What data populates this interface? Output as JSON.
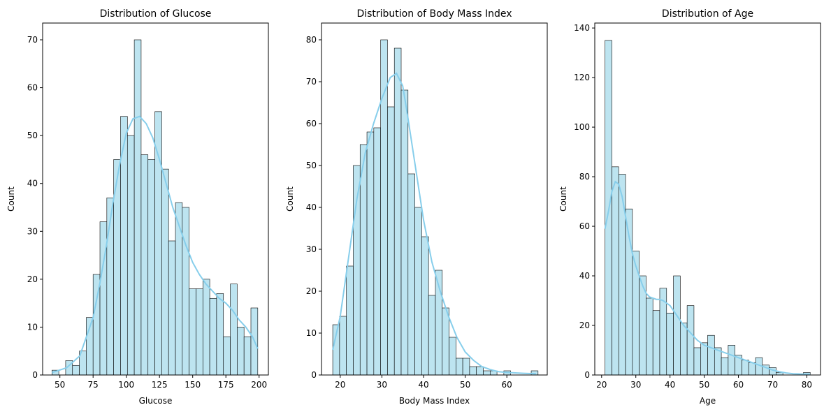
{
  "colors": {
    "bar_fill": "#bde4f0",
    "bar_edge": "#000000",
    "kde_line": "#87ceeb",
    "axes": "#000000"
  },
  "chart_data": [
    {
      "type": "bar",
      "title": "Distribution of Glucose",
      "xlabel": "Glucose",
      "ylabel": "Count",
      "xlim": [
        37,
        207
      ],
      "ylim": [
        0,
        73.5
      ],
      "xticks": [
        50,
        75,
        100,
        125,
        150,
        175,
        200
      ],
      "yticks": [
        0,
        10,
        20,
        30,
        40,
        50,
        60,
        70
      ],
      "bin_start": 44,
      "bin_width": 5.167,
      "counts": [
        1,
        0,
        3,
        2,
        5,
        12,
        21,
        32,
        37,
        45,
        54,
        50,
        70,
        46,
        45,
        55,
        43,
        28,
        36,
        35,
        18,
        18,
        20,
        16,
        17,
        8,
        19,
        10,
        8,
        14
      ],
      "kde": [
        [
          44,
          0.5
        ],
        [
          55,
          1.5
        ],
        [
          65,
          4
        ],
        [
          75,
          12
        ],
        [
          80,
          19
        ],
        [
          85,
          27
        ],
        [
          90,
          36
        ],
        [
          95,
          44
        ],
        [
          100,
          50.5
        ],
        [
          105,
          53.5
        ],
        [
          110,
          54
        ],
        [
          115,
          52.5
        ],
        [
          120,
          49.5
        ],
        [
          125,
          45
        ],
        [
          130,
          40
        ],
        [
          135,
          35
        ],
        [
          140,
          31
        ],
        [
          145,
          27
        ],
        [
          150,
          23.5
        ],
        [
          155,
          21
        ],
        [
          160,
          19
        ],
        [
          165,
          17.5
        ],
        [
          170,
          16
        ],
        [
          175,
          15
        ],
        [
          180,
          13.5
        ],
        [
          185,
          11.5
        ],
        [
          190,
          10
        ],
        [
          195,
          8
        ],
        [
          199,
          5.5
        ]
      ]
    },
    {
      "type": "bar",
      "title": "Distribution of Body Mass Index",
      "xlabel": "Body Mass Index",
      "ylabel": "Count",
      "xlim": [
        15.5,
        69.7
      ],
      "ylim": [
        0,
        84
      ],
      "xticks": [
        20,
        30,
        40,
        50,
        60
      ],
      "yticks": [
        0,
        10,
        20,
        30,
        40,
        50,
        60,
        70,
        80
      ],
      "bin_start": 18.2,
      "bin_width": 1.643,
      "counts": [
        12,
        14,
        26,
        50,
        55,
        58,
        59,
        80,
        64,
        78,
        68,
        48,
        40,
        33,
        19,
        25,
        16,
        9,
        4,
        4,
        2,
        2,
        1,
        1,
        0,
        1,
        0,
        0,
        0,
        1
      ],
      "kde": [
        [
          18.2,
          6
        ],
        [
          20,
          14
        ],
        [
          22,
          28
        ],
        [
          24,
          42
        ],
        [
          26,
          53
        ],
        [
          28,
          60
        ],
        [
          30,
          66
        ],
        [
          32,
          71
        ],
        [
          33.5,
          72
        ],
        [
          35,
          69
        ],
        [
          36,
          63
        ],
        [
          38,
          50
        ],
        [
          40,
          37
        ],
        [
          42,
          27
        ],
        [
          44,
          20
        ],
        [
          46,
          14
        ],
        [
          48,
          9
        ],
        [
          50,
          5.5
        ],
        [
          52,
          3.5
        ],
        [
          54,
          2
        ],
        [
          56,
          1.3
        ],
        [
          58,
          0.8
        ],
        [
          60,
          0.6
        ],
        [
          62,
          0.5
        ],
        [
          64,
          0.4
        ],
        [
          67,
          0.3
        ]
      ]
    },
    {
      "type": "bar",
      "title": "Distribution of Age",
      "xlabel": "Age",
      "ylabel": "Count",
      "xlim": [
        18,
        84
      ],
      "ylim": [
        0,
        142
      ],
      "xticks": [
        20,
        30,
        40,
        50,
        60,
        70,
        80
      ],
      "yticks": [
        0,
        20,
        40,
        60,
        80,
        100,
        120,
        140
      ],
      "bin_start": 21,
      "bin_width": 2,
      "counts": [
        135,
        84,
        81,
        67,
        50,
        40,
        31,
        26,
        35,
        25,
        40,
        21,
        28,
        11,
        13,
        16,
        11,
        7,
        12,
        8,
        6,
        5,
        7,
        4,
        3,
        1,
        0,
        0,
        0,
        1
      ],
      "kde": [
        [
          21,
          59
        ],
        [
          22,
          66
        ],
        [
          23,
          74
        ],
        [
          24,
          78
        ],
        [
          25,
          77
        ],
        [
          26,
          72
        ],
        [
          27,
          64
        ],
        [
          28,
          56
        ],
        [
          29,
          49
        ],
        [
          30,
          44
        ],
        [
          31,
          40
        ],
        [
          32,
          36
        ],
        [
          33,
          33
        ],
        [
          34,
          31.5
        ],
        [
          35,
          31
        ],
        [
          36,
          30.5
        ],
        [
          37,
          30.5
        ],
        [
          38,
          30
        ],
        [
          39,
          29
        ],
        [
          40,
          28
        ],
        [
          41,
          26
        ],
        [
          42,
          24
        ],
        [
          43,
          22
        ],
        [
          44,
          20
        ],
        [
          46,
          17
        ],
        [
          48,
          14
        ],
        [
          50,
          12
        ],
        [
          52,
          11
        ],
        [
          54,
          10
        ],
        [
          56,
          9
        ],
        [
          58,
          8
        ],
        [
          60,
          7
        ],
        [
          62,
          6
        ],
        [
          64,
          5
        ],
        [
          66,
          4
        ],
        [
          68,
          3
        ],
        [
          70,
          2
        ],
        [
          72,
          1.3
        ],
        [
          74,
          0.8
        ],
        [
          76,
          0.5
        ],
        [
          78,
          0.4
        ],
        [
          81,
          0.3
        ]
      ]
    }
  ]
}
